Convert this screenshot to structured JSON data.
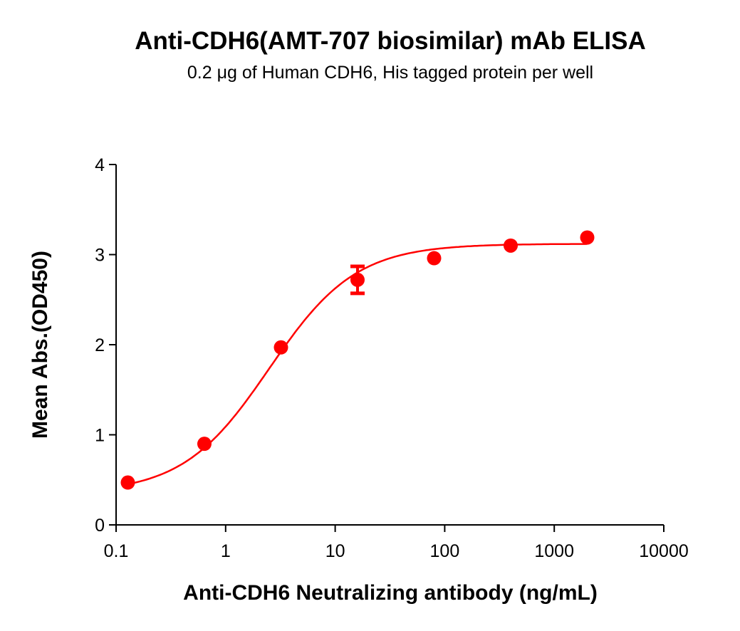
{
  "chart_data": {
    "type": "scatter",
    "title": "Anti-CDH6(AMT-707 biosimilar) mAb ELISA",
    "subtitle": "0.2 μg of Human CDH6, His tagged protein per well",
    "xlabel": "Anti-CDH6 Neutralizing antibody (ng/mL)",
    "ylabel": "Mean Abs.(OD450)",
    "xscale": "log",
    "xlim": [
      0.1,
      10000
    ],
    "ylim": [
      0,
      4
    ],
    "xticks": [
      "0.1",
      "1",
      "10",
      "100",
      "1000",
      "10000"
    ],
    "yticks": [
      "0",
      "1",
      "2",
      "3",
      "4"
    ],
    "grid": false,
    "color": "#ff0000",
    "points": [
      {
        "x": 0.128,
        "y": 0.47
      },
      {
        "x": 0.64,
        "y": 0.9
      },
      {
        "x": 3.2,
        "y": 1.97
      },
      {
        "x": 16,
        "y": 2.72,
        "err": 0.15
      },
      {
        "x": 80,
        "y": 2.96
      },
      {
        "x": 400,
        "y": 3.1
      },
      {
        "x": 2000,
        "y": 3.19
      }
    ],
    "fit": {
      "model": "4PL",
      "bottom": 0.35,
      "top": 3.12,
      "ec50": 2.5,
      "hill": 1.1,
      "x_range": [
        0.128,
        2000
      ]
    }
  }
}
